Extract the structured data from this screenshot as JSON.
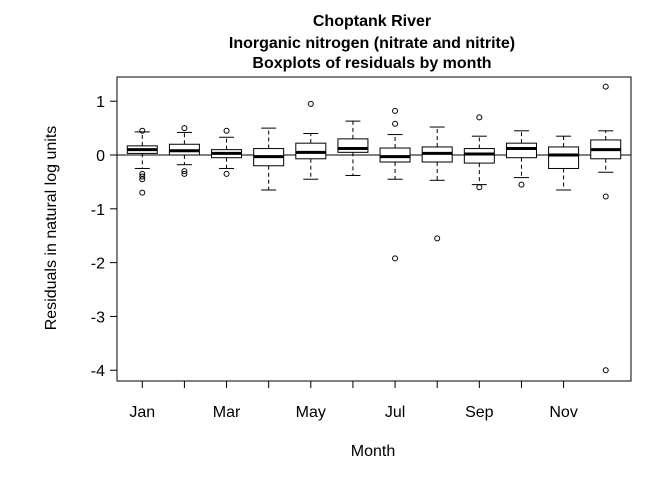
{
  "chart_data": {
    "type": "boxplot",
    "title": [
      "Choptank River",
      "Inorganic nitrogen (nitrate and nitrite)",
      "Boxplots of residuals by month"
    ],
    "xlabel": "Month",
    "ylabel": "Residuals in natural log units",
    "ylim": [
      -4.2,
      1.45
    ],
    "yticks": [
      1,
      0,
      -1,
      -2,
      -3,
      -4
    ],
    "ytick_labels": [
      "1",
      "0",
      "-1",
      "-2",
      "-3",
      "-4"
    ],
    "reference_line": 0,
    "x_tick_labels": [
      "Jan",
      "Mar",
      "May",
      "Jul",
      "Sep",
      "Nov"
    ],
    "x_tick_positions": [
      1,
      3,
      5,
      7,
      9,
      11
    ],
    "months": [
      {
        "month": 1,
        "min": -0.25,
        "q1": 0.03,
        "median": 0.1,
        "q3": 0.17,
        "max": 0.43,
        "outliers": [
          0.45,
          -0.35,
          -0.4,
          -0.45,
          -0.7
        ]
      },
      {
        "month": 2,
        "min": -0.18,
        "q1": 0.0,
        "median": 0.08,
        "q3": 0.2,
        "max": 0.42,
        "outliers": [
          0.5,
          -0.3,
          -0.35
        ]
      },
      {
        "month": 3,
        "min": -0.25,
        "q1": -0.05,
        "median": 0.03,
        "q3": 0.1,
        "max": 0.33,
        "outliers": [
          0.45,
          -0.35
        ]
      },
      {
        "month": 4,
        "min": -0.65,
        "q1": -0.2,
        "median": -0.03,
        "q3": 0.12,
        "max": 0.5,
        "outliers": []
      },
      {
        "month": 5,
        "min": -0.45,
        "q1": -0.07,
        "median": 0.05,
        "q3": 0.22,
        "max": 0.4,
        "outliers": [
          0.95
        ]
      },
      {
        "month": 6,
        "min": -0.38,
        "q1": 0.05,
        "median": 0.12,
        "q3": 0.3,
        "max": 0.63,
        "outliers": []
      },
      {
        "month": 7,
        "min": -0.45,
        "q1": -0.13,
        "median": -0.03,
        "q3": 0.13,
        "max": 0.38,
        "outliers": [
          0.82,
          0.58,
          -1.92
        ]
      },
      {
        "month": 8,
        "min": -0.47,
        "q1": -0.13,
        "median": 0.03,
        "q3": 0.15,
        "max": 0.52,
        "outliers": [
          -1.55
        ]
      },
      {
        "month": 9,
        "min": -0.55,
        "q1": -0.15,
        "median": 0.02,
        "q3": 0.12,
        "max": 0.35,
        "outliers": [
          0.7,
          -0.6
        ]
      },
      {
        "month": 10,
        "min": -0.42,
        "q1": -0.05,
        "median": 0.12,
        "q3": 0.22,
        "max": 0.45,
        "outliers": [
          -0.55
        ]
      },
      {
        "month": 11,
        "min": -0.65,
        "q1": -0.25,
        "median": 0.0,
        "q3": 0.15,
        "max": 0.35,
        "outliers": []
      },
      {
        "month": 12,
        "min": -0.32,
        "q1": -0.07,
        "median": 0.1,
        "q3": 0.28,
        "max": 0.45,
        "outliers": [
          1.27,
          -0.77,
          -4.0
        ]
      }
    ]
  }
}
